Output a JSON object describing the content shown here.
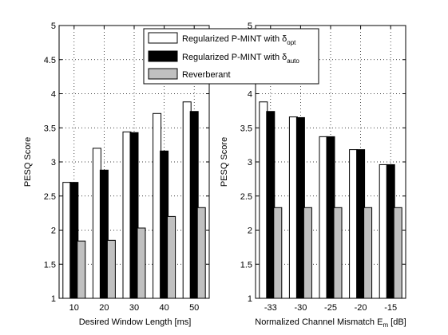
{
  "chart_data": [
    {
      "type": "bar",
      "xlabel": "Desired Window Length [ms]",
      "ylabel": "PESQ Score",
      "categories": [
        "10",
        "20",
        "30",
        "40",
        "50"
      ],
      "ylim": [
        1,
        5
      ],
      "yticks": [
        "1",
        "1.5",
        "2",
        "2.5",
        "3",
        "3.5",
        "4",
        "4.5",
        "5"
      ],
      "grid": "dotted",
      "series": [
        {
          "name": "Regularized P-MINT with δopt",
          "values": [
            2.7,
            3.2,
            3.44,
            3.71,
            3.88
          ]
        },
        {
          "name": "Regularized P-MINT with δauto",
          "values": [
            2.7,
            2.88,
            3.43,
            3.16,
            3.74
          ]
        },
        {
          "name": "Reverberant",
          "values": [
            1.84,
            1.85,
            2.03,
            2.2,
            2.33
          ]
        }
      ]
    },
    {
      "type": "bar",
      "xlabel": "Normalized Channel Mismatch E",
      "xlabel_sub": "m",
      "xlabel_unit": " [dB]",
      "ylabel": "PESQ Score",
      "categories": [
        "-33",
        "-30",
        "-25",
        "-20",
        "-15"
      ],
      "ylim": [
        1,
        5
      ],
      "yticks": [
        "1",
        "1.5",
        "2",
        "2.5",
        "3",
        "3.5",
        "4",
        "4.5",
        "5"
      ],
      "grid": "dotted",
      "series": [
        {
          "name": "Regularized P-MINT with δopt",
          "values": [
            3.88,
            3.66,
            3.37,
            3.18,
            2.96
          ]
        },
        {
          "name": "Regularized P-MINT with δauto",
          "values": [
            3.74,
            3.65,
            3.37,
            3.18,
            2.96
          ]
        },
        {
          "name": "Reverberant",
          "values": [
            2.33,
            2.33,
            2.33,
            2.33,
            2.33
          ]
        }
      ]
    }
  ],
  "legend": {
    "placement": "top-center",
    "entries": [
      {
        "text": "Regularized P-MINT with δ",
        "sub": "opt",
        "color": "#ffffff"
      },
      {
        "text": "Regularized P-MINT with δ",
        "sub": "auto",
        "color": "#000000"
      },
      {
        "text": "Reverberant",
        "sub": "",
        "color": "#c0c0c0"
      }
    ]
  },
  "colors": {
    "series": [
      "#ffffff",
      "#000000",
      "#c0c0c0"
    ],
    "edge": "#000000"
  }
}
